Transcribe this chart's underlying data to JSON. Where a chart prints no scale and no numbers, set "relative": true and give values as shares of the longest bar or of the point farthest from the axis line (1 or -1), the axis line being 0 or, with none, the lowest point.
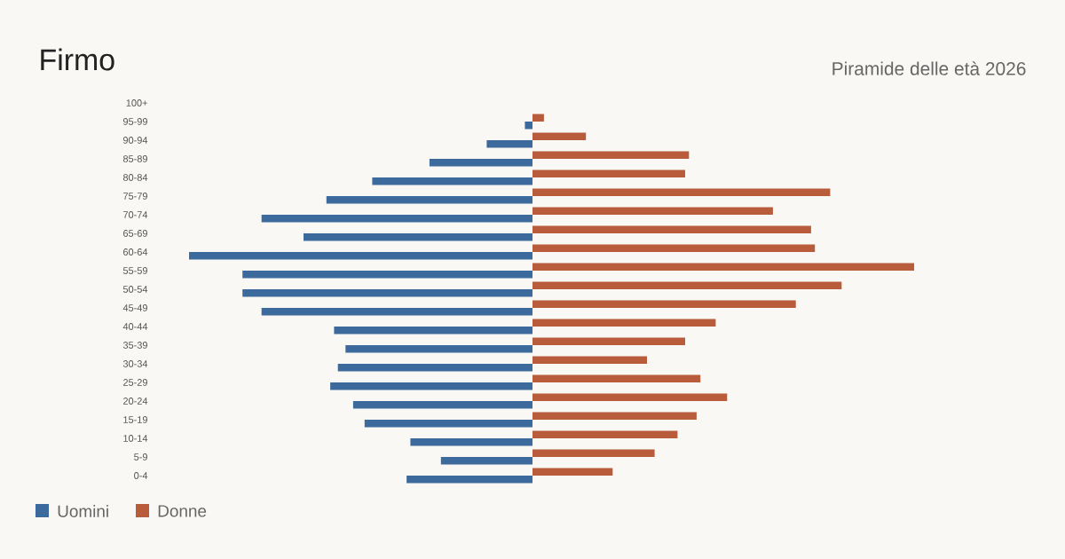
{
  "chart_data": {
    "type": "bar",
    "orientation": "horizontal",
    "relative": true,
    "title": "Firmo",
    "subtitle": "Piramide delle età 2026",
    "legend": "bottom left",
    "categories": [
      "100+",
      "95-99",
      "90-94",
      "85-89",
      "80-84",
      "75-79",
      "70-74",
      "65-69",
      "60-64",
      "55-59",
      "50-54",
      "45-49",
      "40-44",
      "35-39",
      "30-34",
      "25-29",
      "20-24",
      "15-19",
      "10-14",
      "5-9",
      "0-4"
    ],
    "series": [
      {
        "name": "Uomini",
        "color": "#3c6a9c",
        "values": [
          0,
          -0.02,
          -0.12,
          -0.27,
          -0.42,
          -0.54,
          -0.71,
          -0.6,
          -0.9,
          -0.76,
          -0.76,
          -0.71,
          -0.52,
          -0.49,
          -0.51,
          -0.53,
          -0.47,
          -0.44,
          -0.32,
          -0.24,
          -0.33
        ]
      },
      {
        "name": "Donne",
        "color": "#b85c3c",
        "values": [
          0,
          0.03,
          0.14,
          0.41,
          0.4,
          0.78,
          0.63,
          0.73,
          0.74,
          1,
          0.81,
          0.69,
          0.48,
          0.4,
          0.3,
          0.44,
          0.51,
          0.43,
          0.38,
          0.32,
          0.21
        ]
      }
    ]
  }
}
